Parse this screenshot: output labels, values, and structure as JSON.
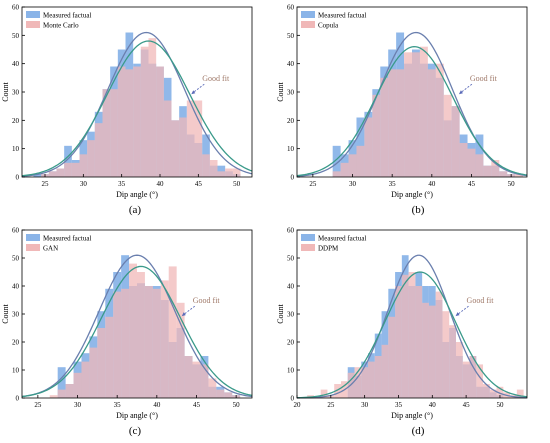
{
  "chart_data": [
    {
      "type": "bar",
      "panel_label": "(a)",
      "xlabel": "Dip angle (°)",
      "ylabel": "Count",
      "xlim": [
        22,
        52
      ],
      "ylim": [
        0,
        60
      ],
      "xticks": [
        25,
        30,
        35,
        40,
        45,
        50
      ],
      "yticks": [
        0,
        10,
        20,
        30,
        40,
        50,
        60
      ],
      "bin_width": 1,
      "legend_position": "top-left",
      "annotation": "Good fit",
      "series": [
        {
          "name": "Measured factual",
          "color": "#8ab4e8",
          "x": [
            24,
            25,
            26,
            27,
            28,
            29,
            30,
            31,
            32,
            33,
            34,
            35,
            36,
            37,
            38,
            39,
            40,
            41,
            42,
            43,
            44,
            45,
            46,
            47,
            48,
            49,
            50,
            51
          ],
          "values": [
            1,
            1,
            2,
            3,
            11,
            6,
            13,
            16,
            23,
            31,
            39,
            45,
            51,
            40,
            45,
            40,
            39,
            35,
            20,
            25,
            15,
            12,
            15,
            4,
            4,
            2,
            1,
            0
          ]
        },
        {
          "name": "Monte Carlo",
          "color": "#f0b8b8",
          "x": [
            24,
            25,
            26,
            27,
            28,
            29,
            30,
            31,
            32,
            33,
            34,
            35,
            36,
            37,
            38,
            39,
            40,
            41,
            42,
            43,
            44,
            45,
            46,
            47,
            48,
            49,
            50,
            51
          ],
          "values": [
            0,
            1,
            2,
            3,
            5,
            5,
            8,
            13,
            19,
            31,
            31,
            39,
            38,
            39,
            46,
            49,
            39,
            27,
            20,
            21,
            27,
            27,
            8,
            6,
            2,
            3,
            3,
            0
          ]
        }
      ],
      "curves": [
        {
          "mean": 38.2,
          "sd": 5.0,
          "peak": 51,
          "color": "#6a7fae"
        },
        {
          "mean": 38.5,
          "sd": 5.4,
          "peak": 48,
          "color": "#3a9a8a"
        }
      ]
    },
    {
      "type": "bar",
      "panel_label": "(b)",
      "xlabel": "Dip angle (°)",
      "ylabel": "Count",
      "xlim": [
        23,
        52
      ],
      "ylim": [
        0,
        60
      ],
      "xticks": [
        25,
        30,
        35,
        40,
        45,
        50
      ],
      "yticks": [
        0,
        10,
        20,
        30,
        40,
        50,
        60
      ],
      "bin_width": 1,
      "legend_position": "top-left",
      "annotation": "Good fit",
      "series": [
        {
          "name": "Measured factual",
          "color": "#8ab4e8",
          "x": [
            28,
            29,
            30,
            31,
            32,
            33,
            34,
            35,
            36,
            37,
            38,
            39,
            40,
            41,
            42,
            43,
            44,
            45,
            46,
            47,
            48,
            49,
            50,
            51
          ],
          "values": [
            11,
            8,
            13,
            21,
            23,
            31,
            39,
            45,
            51,
            40,
            45,
            40,
            40,
            35,
            20,
            25,
            15,
            12,
            15,
            4,
            4,
            2,
            1,
            0
          ]
        },
        {
          "name": "Copula",
          "color": "#f0b8b8",
          "x": [
            24,
            25,
            26,
            27,
            28,
            29,
            30,
            31,
            32,
            33,
            34,
            35,
            36,
            37,
            38,
            39,
            40,
            41,
            42,
            43,
            44,
            45,
            46,
            47,
            48,
            49,
            50,
            51
          ],
          "values": [
            0,
            0,
            0,
            0,
            2,
            5,
            8,
            11,
            21,
            29,
            35,
            38,
            38,
            44,
            44,
            46,
            38,
            40,
            29,
            25,
            12,
            10,
            8,
            4,
            6,
            2,
            1,
            1
          ]
        }
      ],
      "curves": [
        {
          "mean": 38.0,
          "sd": 4.6,
          "peak": 51,
          "color": "#6a7fae"
        },
        {
          "mean": 37.8,
          "sd": 4.9,
          "peak": 46,
          "color": "#3a9a8a"
        }
      ]
    },
    {
      "type": "bar",
      "panel_label": "(c)",
      "xlabel": "Dip angle (°)",
      "ylabel": "Count",
      "xlim": [
        23,
        52
      ],
      "ylim": [
        0,
        60
      ],
      "xticks": [
        25,
        30,
        35,
        40,
        45,
        50
      ],
      "yticks": [
        0,
        10,
        20,
        30,
        40,
        50,
        60
      ],
      "bin_width": 1,
      "legend_position": "top-left",
      "annotation": "Good fit",
      "series": [
        {
          "name": "Measured factual",
          "color": "#8ab4e8",
          "x": [
            24,
            25,
            26,
            27,
            28,
            29,
            30,
            31,
            32,
            33,
            34,
            35,
            36,
            37,
            38,
            39,
            40,
            41,
            42,
            43,
            44,
            45,
            46,
            47,
            48,
            49,
            50,
            51
          ],
          "values": [
            0,
            0,
            0,
            0,
            11,
            5,
            13,
            16,
            22,
            31,
            39,
            45,
            51,
            40,
            41,
            40,
            40,
            35,
            20,
            25,
            15,
            12,
            15,
            4,
            4,
            2,
            1,
            0
          ]
        },
        {
          "name": "GAN",
          "color": "#f0b8b8",
          "x": [
            24,
            25,
            26,
            27,
            28,
            29,
            30,
            31,
            32,
            33,
            34,
            35,
            36,
            37,
            38,
            39,
            40,
            41,
            42,
            43,
            44,
            45,
            46,
            47,
            48,
            49,
            50,
            51
          ],
          "values": [
            0,
            0,
            0,
            1,
            3,
            5,
            9,
            13,
            18,
            25,
            29,
            38,
            39,
            48,
            45,
            40,
            39,
            42,
            47,
            34,
            15,
            13,
            12,
            7,
            3,
            2,
            1,
            0
          ]
        }
      ],
      "curves": [
        {
          "mean": 37.5,
          "sd": 4.8,
          "peak": 51,
          "color": "#6a7fae"
        },
        {
          "mean": 38.0,
          "sd": 5.0,
          "peak": 47,
          "color": "#3a9a8a"
        }
      ]
    },
    {
      "type": "bar",
      "panel_label": "(d)",
      "xlabel": "Dip angle (°)",
      "ylabel": "Count",
      "xlim": [
        20,
        54
      ],
      "ylim": [
        0,
        60
      ],
      "xticks": [
        20,
        25,
        30,
        35,
        40,
        45,
        50
      ],
      "yticks": [
        0,
        10,
        20,
        30,
        40,
        50,
        60
      ],
      "bin_width": 1,
      "legend_position": "top-left",
      "annotation": "Good fit",
      "series": [
        {
          "name": "Measured factual",
          "color": "#8ab4e8",
          "x": [
            28,
            29,
            30,
            31,
            32,
            33,
            34,
            35,
            36,
            37,
            38,
            39,
            40,
            41,
            42,
            43,
            44,
            45,
            46,
            47,
            48,
            49,
            50,
            51
          ],
          "values": [
            11,
            8,
            13,
            16,
            23,
            31,
            39,
            45,
            51,
            40,
            45,
            40,
            40,
            35,
            20,
            25,
            15,
            12,
            15,
            4,
            4,
            2,
            1,
            0
          ]
        },
        {
          "name": "DDPM",
          "color": "#f0b8b8",
          "x": [
            21,
            22,
            23,
            24,
            25,
            26,
            27,
            28,
            29,
            30,
            31,
            32,
            33,
            34,
            35,
            36,
            37,
            38,
            39,
            40,
            41,
            42,
            43,
            44,
            45,
            46,
            47,
            48,
            49,
            50,
            51,
            52,
            53
          ],
          "values": [
            0,
            1,
            0,
            3,
            1,
            5,
            6,
            9,
            11,
            11,
            13,
            15,
            19,
            29,
            40,
            44,
            45,
            40,
            34,
            33,
            38,
            31,
            26,
            20,
            13,
            15,
            12,
            5,
            3,
            4,
            2,
            1,
            3
          ]
        }
      ],
      "curves": [
        {
          "mean": 38.0,
          "sd": 4.6,
          "peak": 51,
          "color": "#6a7fae"
        },
        {
          "mean": 38.2,
          "sd": 5.2,
          "peak": 45,
          "color": "#3a9a8a"
        }
      ]
    }
  ]
}
